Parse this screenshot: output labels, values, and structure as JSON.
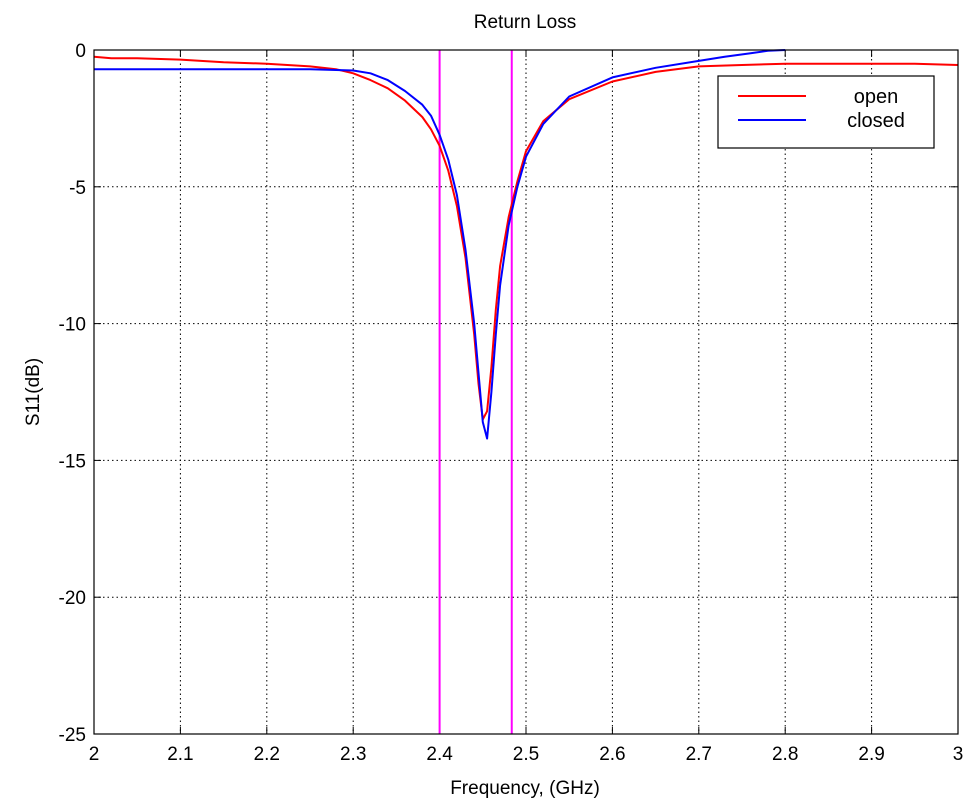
{
  "chart_data": {
    "type": "line",
    "title": "Return Loss",
    "xlabel": "Frequency, (GHz)",
    "ylabel": "S11(dB)",
    "xlim": [
      2,
      3
    ],
    "ylim": [
      -25,
      0
    ],
    "xticks": [
      2,
      2.1,
      2.2,
      2.3,
      2.4,
      2.5,
      2.6,
      2.7,
      2.8,
      2.9,
      3
    ],
    "xtick_labels": [
      "2",
      "2.1",
      "2.2",
      "2.3",
      "2.4",
      "2.5",
      "2.6",
      "2.7",
      "2.8",
      "2.9",
      "3"
    ],
    "yticks": [
      0,
      -5,
      -10,
      -15,
      -20,
      -25
    ],
    "ytick_labels": [
      "0",
      "-5",
      "-10",
      "-15",
      "-20",
      "-25"
    ],
    "grid": true,
    "legend_position": "top-right",
    "series": [
      {
        "name": "open",
        "color": "#ff0000",
        "x": [
          2.0,
          2.02,
          2.05,
          2.1,
          2.15,
          2.2,
          2.25,
          2.28,
          2.3,
          2.32,
          2.34,
          2.36,
          2.38,
          2.39,
          2.4,
          2.41,
          2.42,
          2.43,
          2.44,
          2.445,
          2.45,
          2.455,
          2.46,
          2.465,
          2.47,
          2.48,
          2.49,
          2.5,
          2.52,
          2.55,
          2.6,
          2.65,
          2.7,
          2.75,
          2.8,
          2.85,
          2.9,
          2.95,
          3.0
        ],
        "y": [
          -0.25,
          -0.3,
          -0.3,
          -0.35,
          -0.45,
          -0.5,
          -0.6,
          -0.7,
          -0.85,
          -1.1,
          -1.4,
          -1.85,
          -2.45,
          -2.9,
          -3.5,
          -4.4,
          -5.7,
          -7.6,
          -10.4,
          -12.2,
          -13.5,
          -13.2,
          -11.6,
          -9.5,
          -7.9,
          -6.1,
          -4.8,
          -3.7,
          -2.6,
          -1.8,
          -1.15,
          -0.8,
          -0.6,
          -0.55,
          -0.5,
          -0.5,
          -0.5,
          -0.5,
          -0.55
        ]
      },
      {
        "name": "closed",
        "color": "#0000ff",
        "x": [
          2.0,
          2.05,
          2.1,
          2.15,
          2.2,
          2.25,
          2.3,
          2.32,
          2.34,
          2.36,
          2.38,
          2.39,
          2.4,
          2.41,
          2.42,
          2.43,
          2.44,
          2.445,
          2.45,
          2.455,
          2.46,
          2.465,
          2.47,
          2.48,
          2.49,
          2.5,
          2.52,
          2.55,
          2.6,
          2.65,
          2.7,
          2.73,
          2.76,
          2.78,
          2.8
        ],
        "y": [
          -0.7,
          -0.7,
          -0.7,
          -0.7,
          -0.7,
          -0.7,
          -0.75,
          -0.85,
          -1.1,
          -1.5,
          -2.0,
          -2.4,
          -3.1,
          -4.0,
          -5.3,
          -7.3,
          -10.0,
          -11.8,
          -13.6,
          -14.2,
          -12.5,
          -10.4,
          -8.6,
          -6.4,
          -5.0,
          -3.9,
          -2.7,
          -1.7,
          -1.0,
          -0.65,
          -0.4,
          -0.25,
          -0.12,
          -0.03,
          0.0
        ]
      }
    ],
    "markers": [
      {
        "x": 2.4,
        "color": "#ff00ff"
      },
      {
        "x": 2.4835,
        "color": "#ff00ff"
      }
    ]
  }
}
